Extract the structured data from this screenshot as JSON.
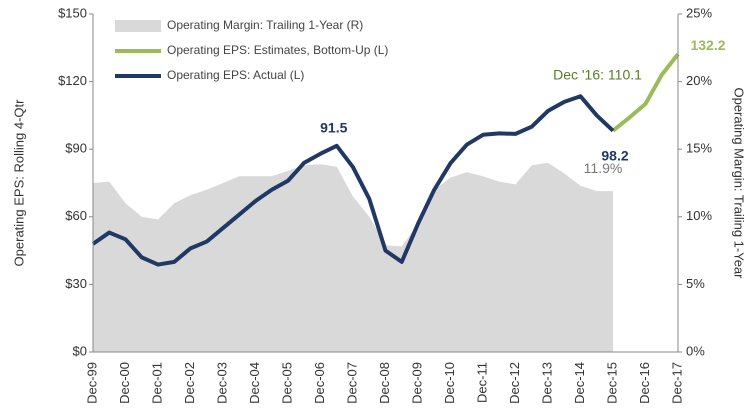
{
  "chart_data": {
    "type": "line",
    "ylabel": "Operating EPS: Rolling 4-Qtr",
    "y2label": "Operating Margin: Trailing 1-Year",
    "categories": [
      "Dec-99",
      null,
      "Dec-00",
      null,
      "Dec-01",
      null,
      "Dec-02",
      null,
      "Dec-03",
      null,
      "Dec-04",
      null,
      "Dec-05",
      null,
      "Dec-06",
      null,
      "Dec-07",
      null,
      "Dec-08",
      null,
      "Dec-09",
      null,
      "Dec-10",
      null,
      "Dec-11",
      null,
      "Dec-12",
      null,
      "Dec-13",
      null,
      "Dec-14",
      null,
      "Dec-15",
      null,
      "Dec-16",
      null,
      "Dec-17"
    ],
    "ylim": [
      0,
      150
    ],
    "yticks": [
      {
        "value": 0,
        "label": "$0"
      },
      {
        "value": 30,
        "label": "$30"
      },
      {
        "value": 60,
        "label": "$60"
      },
      {
        "value": 90,
        "label": "$90"
      },
      {
        "value": 120,
        "label": "$120"
      },
      {
        "value": 150,
        "label": "$150"
      }
    ],
    "y2lim": [
      0,
      25
    ],
    "y2ticks": [
      {
        "value": 0,
        "label": "0%"
      },
      {
        "value": 5,
        "label": "5%"
      },
      {
        "value": 10,
        "label": "10%"
      },
      {
        "value": 15,
        "label": "15%"
      },
      {
        "value": 20,
        "label": "20%"
      },
      {
        "value": 25,
        "label": "25%"
      }
    ],
    "legend": "upper left",
    "series": [
      {
        "name": "Operating Margin: Trailing 1-Year (R)",
        "kind": "area",
        "axis": "y2",
        "color": "#d9d9d9",
        "values": [
          12.5,
          12.6,
          11,
          10,
          9.8,
          11,
          11.6,
          12,
          12.5,
          13,
          13,
          13,
          13.4,
          13.8,
          13.9,
          13.7,
          11.5,
          10,
          7.9,
          7.8,
          9.5,
          12,
          12.9,
          13.3,
          13,
          12.6,
          12.4,
          13.8,
          14,
          13.2,
          12.3,
          11.9,
          11.9,
          null,
          null,
          null,
          null
        ]
      },
      {
        "name": "Operating EPS: Estimates, Bottom-Up (L)",
        "kind": "line",
        "color": "#9bbb59",
        "values": [
          null,
          null,
          null,
          null,
          null,
          null,
          null,
          null,
          null,
          null,
          null,
          null,
          null,
          null,
          null,
          null,
          null,
          null,
          null,
          null,
          null,
          null,
          null,
          null,
          null,
          null,
          null,
          null,
          null,
          null,
          null,
          null,
          98.2,
          104,
          110.1,
          123,
          132.2
        ]
      },
      {
        "name": "Operating EPS: Actual (L)",
        "kind": "line",
        "color": "#1f3864",
        "values": [
          48,
          53,
          50,
          42,
          38.8,
          40,
          46,
          49,
          55,
          61,
          67,
          72,
          76,
          84,
          88,
          91.5,
          82,
          68,
          45,
          40,
          56.9,
          72,
          83.8,
          92,
          96.4,
          97,
          96.8,
          100,
          107,
          111,
          113.5,
          105,
          98.2,
          null,
          null,
          null,
          null
        ]
      }
    ],
    "annotations": [
      "Dec '16: 110.1",
      "11.9%"
    ]
  }
}
